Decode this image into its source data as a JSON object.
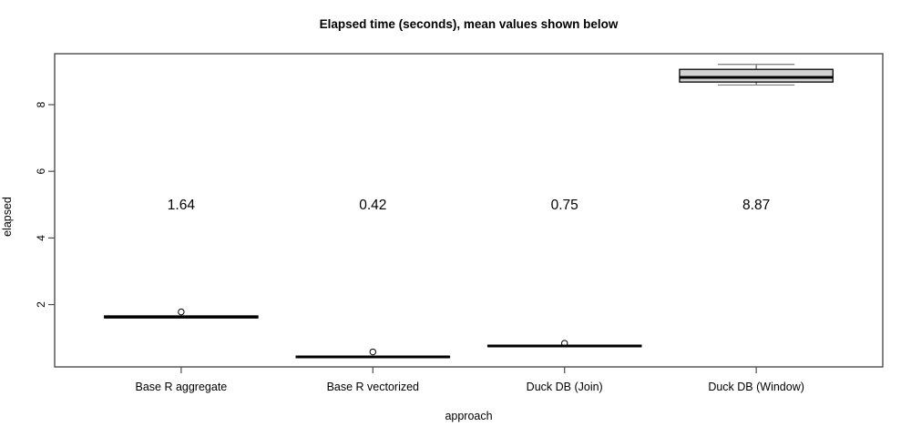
{
  "chart_data": {
    "type": "boxplot",
    "title": "Elapsed time (seconds), mean values shown below",
    "xlabel": "approach",
    "ylabel": "elapsed",
    "categories": [
      "Base R aggregate",
      "Base R vectorized",
      "Duck DB (Join)",
      "Duck DB (Window)"
    ],
    "means": [
      "1.64",
      "0.42",
      "0.75",
      "8.87"
    ],
    "mean_label_y": 5.0,
    "series": [
      {
        "name": "Base R aggregate",
        "low": 1.6,
        "q1": 1.6,
        "median": 1.63,
        "q3": 1.66,
        "high": 1.66,
        "outliers": [
          1.78
        ]
      },
      {
        "name": "Base R vectorized",
        "low": 0.41,
        "q1": 0.41,
        "median": 0.43,
        "q3": 0.45,
        "high": 0.45,
        "outliers": [
          0.58
        ]
      },
      {
        "name": "Duck DB (Join)",
        "low": 0.74,
        "q1": 0.74,
        "median": 0.76,
        "q3": 0.78,
        "high": 0.78,
        "outliers": [
          0.84
        ]
      },
      {
        "name": "Duck DB (Window)",
        "low": 8.59,
        "q1": 8.68,
        "median": 8.82,
        "q3": 9.06,
        "high": 9.21,
        "outliers": []
      }
    ],
    "y_ticks": [
      "2",
      "4",
      "6",
      "8"
    ],
    "y_tick_values": [
      2,
      4,
      6,
      8
    ],
    "ylim": [
      0.13,
      9.53
    ],
    "xlim": [
      0.34,
      4.66
    ],
    "grid": false,
    "legend": "none",
    "colors": {
      "box_fill": "#d3d3d3",
      "box_border": "#000000",
      "median": "#000000",
      "whisker": "#4d4d4d",
      "whisker_cap": "#888888",
      "frame": "#4d4d4d",
      "text": "#000000"
    }
  }
}
